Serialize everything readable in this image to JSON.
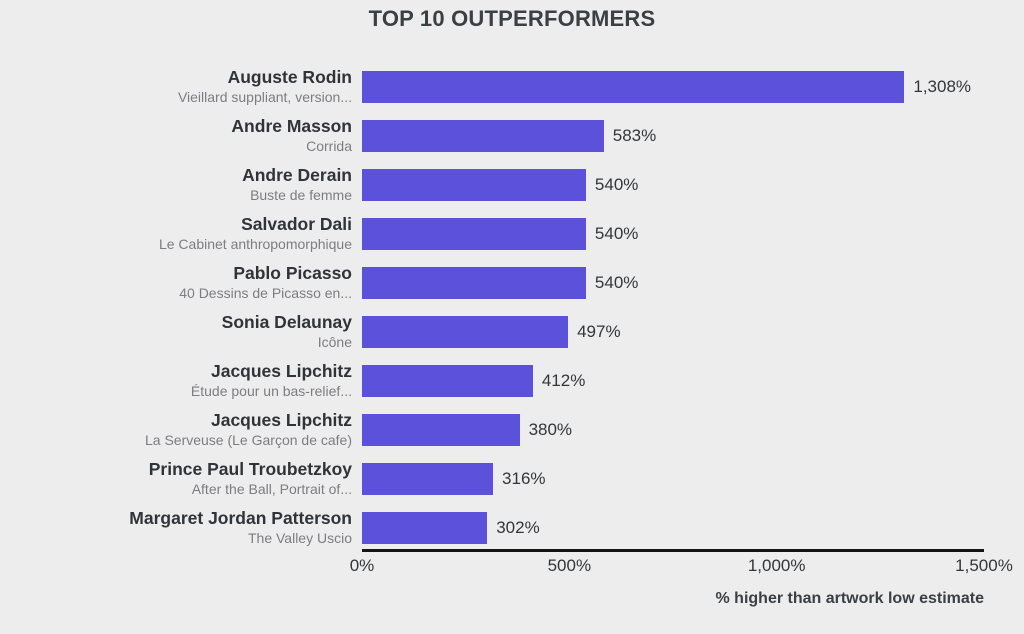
{
  "page": {
    "background_color": "#EEEDEE"
  },
  "chart_data": {
    "type": "bar",
    "orientation": "horizontal",
    "title": "TOP 10 OUTPERFORMERS",
    "xlabel": "% higher than artwork low estimate",
    "xlim": [
      0,
      1500
    ],
    "grid": false,
    "bar_color": "#5B51DB",
    "axis_line_color": "#151515",
    "x_ticks": [
      {
        "value": 0,
        "label": "0%"
      },
      {
        "value": 500,
        "label": "500%"
      },
      {
        "value": 1000,
        "label": "1,000%"
      },
      {
        "value": 1500,
        "label": "1,500%"
      }
    ],
    "bars": [
      {
        "artist": "Auguste Rodin",
        "artwork": "Vieillard suppliant, version...",
        "value": 1308,
        "value_label": "1,308%"
      },
      {
        "artist": "Andre Masson",
        "artwork": "Corrida",
        "value": 583,
        "value_label": "583%"
      },
      {
        "artist": "Andre Derain",
        "artwork": "Buste de femme",
        "value": 540,
        "value_label": "540%"
      },
      {
        "artist": "Salvador Dali",
        "artwork": "Le Cabinet anthropomorphique",
        "value": 540,
        "value_label": "540%"
      },
      {
        "artist": "Pablo Picasso",
        "artwork": "40 Dessins de Picasso en...",
        "value": 540,
        "value_label": "540%"
      },
      {
        "artist": "Sonia Delaunay",
        "artwork": "Icône",
        "value": 497,
        "value_label": "497%"
      },
      {
        "artist": "Jacques Lipchitz",
        "artwork": "Étude pour un bas-relief...",
        "value": 412,
        "value_label": "412%"
      },
      {
        "artist": "Jacques Lipchitz",
        "artwork": "La Serveuse (Le Garçon de cafe)",
        "value": 380,
        "value_label": "380%"
      },
      {
        "artist": "Prince Paul Troubetzkoy",
        "artwork": "After the Ball, Portrait of...",
        "value": 316,
        "value_label": "316%"
      },
      {
        "artist": "Margaret Jordan Patterson",
        "artwork": "The Valley Uscio",
        "value": 302,
        "value_label": "302%"
      }
    ]
  }
}
